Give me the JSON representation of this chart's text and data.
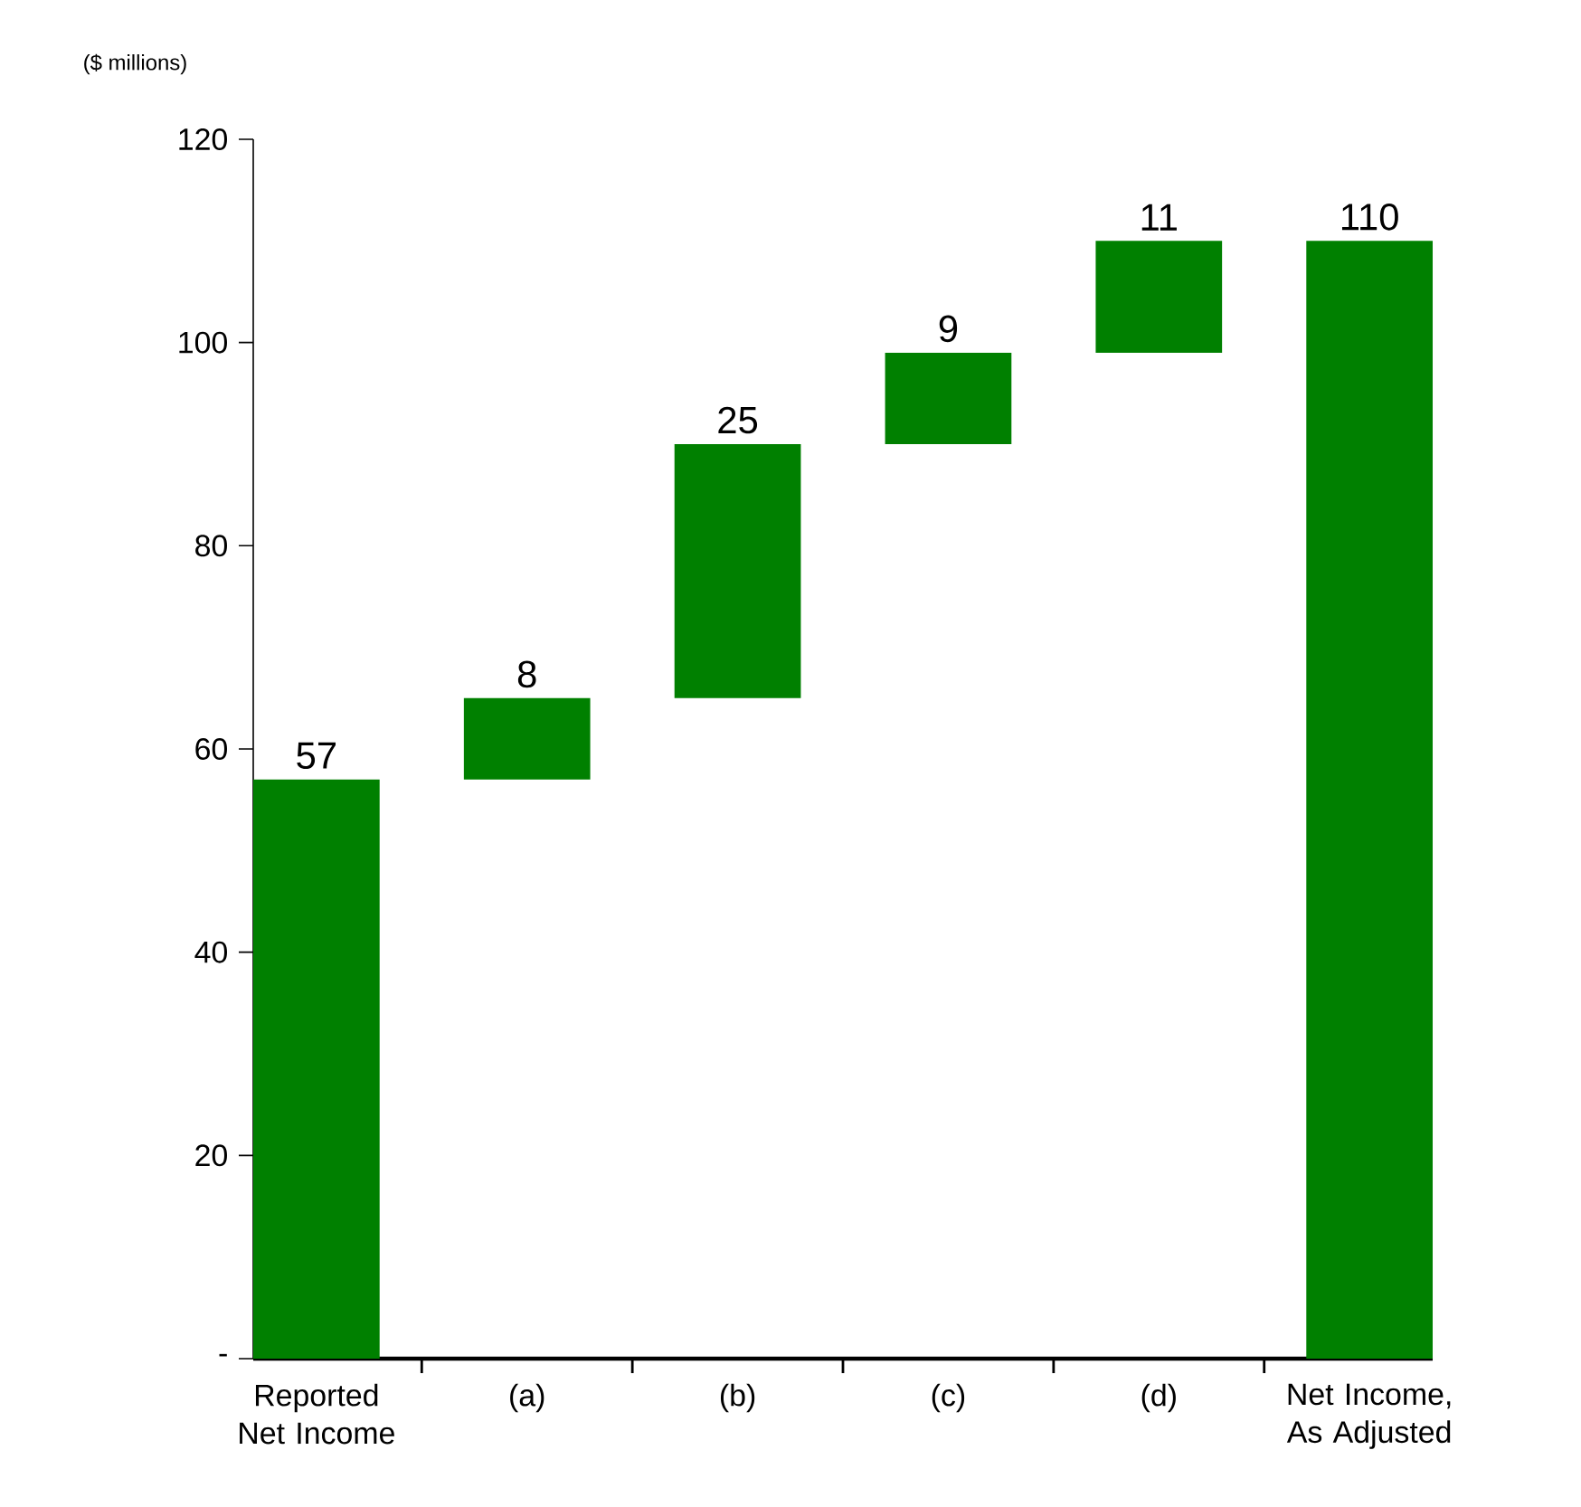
{
  "chart_data": {
    "type": "bar",
    "ylabel": "($ millions)",
    "categories": [
      "Reported Net Income",
      "(a)",
      "(b)",
      "(c)",
      "(d)",
      "Net Income, As Adjusted"
    ],
    "values": [
      57,
      8,
      25,
      9,
      11,
      110
    ],
    "base": [
      0,
      57,
      65,
      90,
      99,
      0
    ],
    "color": "#008000",
    "data_labels": true,
    "ylim": [
      0,
      120
    ],
    "yticks": [
      {
        "value": 0,
        "label": "-"
      },
      20,
      40,
      60,
      80,
      100,
      120
    ]
  }
}
